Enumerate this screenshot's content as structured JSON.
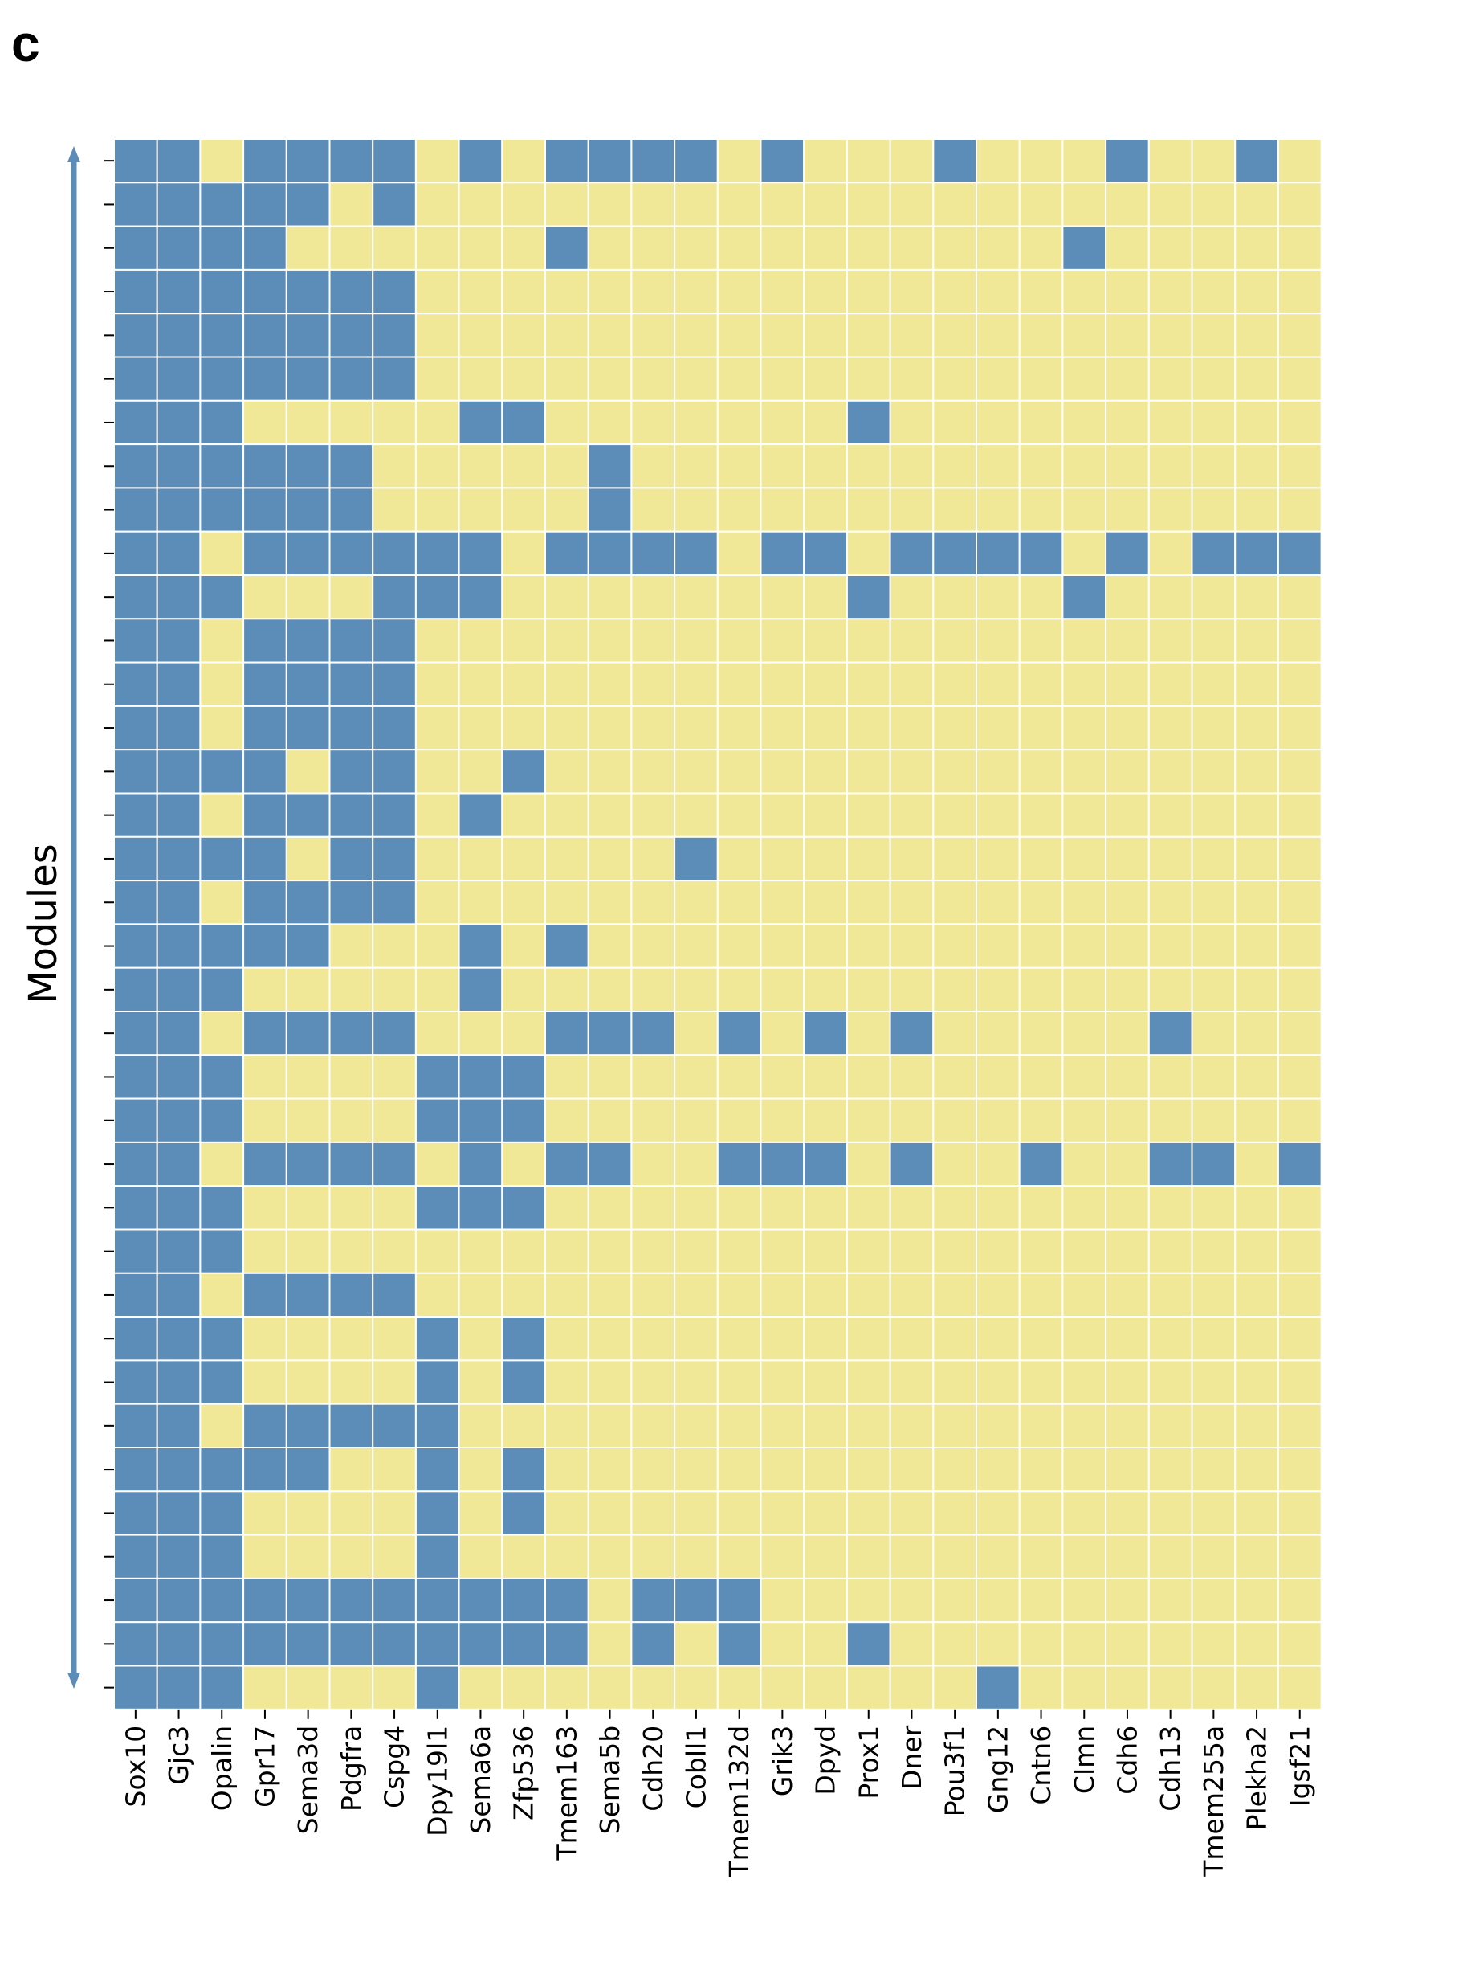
{
  "panel_label": "c",
  "chart_data": {
    "type": "heatmap",
    "ylabel": "Modules",
    "colors": {
      "present": "#5b8db8",
      "absent": "#f0e896",
      "grid": "#ffffff",
      "arrow": "#5b8db8"
    },
    "columns": [
      "Sox10",
      "Gjc3",
      "Opalin",
      "Gpr17",
      "Sema3d",
      "Pdgfra",
      "Cspg4",
      "Dpy19l1",
      "Sema6a",
      "Zfp536",
      "Tmem163",
      "Sema5b",
      "Cdh20",
      "Cobll1",
      "Tmem132d",
      "Grik3",
      "Dpyd",
      "Prox1",
      "Dner",
      "Pou3f1",
      "Gng12",
      "Cntn6",
      "Clmn",
      "Cdh6",
      "Cdh13",
      "Tmem255a",
      "Plekha2",
      "Igsf21"
    ],
    "matrix": [
      [
        1,
        1,
        0,
        1,
        1,
        1,
        1,
        0,
        1,
        0,
        1,
        1,
        1,
        1,
        0,
        1,
        0,
        0,
        0,
        1,
        0,
        0,
        0,
        1,
        0,
        0,
        1,
        0
      ],
      [
        1,
        1,
        1,
        1,
        1,
        0,
        1,
        0,
        0,
        0,
        0,
        0,
        0,
        0,
        0,
        0,
        0,
        0,
        0,
        0,
        0,
        0,
        0,
        0,
        0,
        0,
        0,
        0
      ],
      [
        1,
        1,
        1,
        1,
        0,
        0,
        0,
        0,
        0,
        0,
        1,
        0,
        0,
        0,
        0,
        0,
        0,
        0,
        0,
        0,
        0,
        0,
        1,
        0,
        0,
        0,
        0,
        0
      ],
      [
        1,
        1,
        1,
        1,
        1,
        1,
        1,
        0,
        0,
        0,
        0,
        0,
        0,
        0,
        0,
        0,
        0,
        0,
        0,
        0,
        0,
        0,
        0,
        0,
        0,
        0,
        0,
        0
      ],
      [
        1,
        1,
        1,
        1,
        1,
        1,
        1,
        0,
        0,
        0,
        0,
        0,
        0,
        0,
        0,
        0,
        0,
        0,
        0,
        0,
        0,
        0,
        0,
        0,
        0,
        0,
        0,
        0
      ],
      [
        1,
        1,
        1,
        1,
        1,
        1,
        1,
        0,
        0,
        0,
        0,
        0,
        0,
        0,
        0,
        0,
        0,
        0,
        0,
        0,
        0,
        0,
        0,
        0,
        0,
        0,
        0,
        0
      ],
      [
        1,
        1,
        1,
        0,
        0,
        0,
        0,
        0,
        1,
        1,
        0,
        0,
        0,
        0,
        0,
        0,
        0,
        1,
        0,
        0,
        0,
        0,
        0,
        0,
        0,
        0,
        0,
        0
      ],
      [
        1,
        1,
        1,
        1,
        1,
        1,
        0,
        0,
        0,
        0,
        0,
        1,
        0,
        0,
        0,
        0,
        0,
        0,
        0,
        0,
        0,
        0,
        0,
        0,
        0,
        0,
        0,
        0
      ],
      [
        1,
        1,
        1,
        1,
        1,
        1,
        0,
        0,
        0,
        0,
        0,
        1,
        0,
        0,
        0,
        0,
        0,
        0,
        0,
        0,
        0,
        0,
        0,
        0,
        0,
        0,
        0,
        0
      ],
      [
        1,
        1,
        0,
        1,
        1,
        1,
        1,
        1,
        1,
        0,
        1,
        1,
        1,
        1,
        0,
        1,
        1,
        0,
        1,
        1,
        1,
        1,
        0,
        1,
        0,
        1,
        1,
        1
      ],
      [
        1,
        1,
        1,
        0,
        0,
        0,
        1,
        1,
        1,
        0,
        0,
        0,
        0,
        0,
        0,
        0,
        0,
        1,
        0,
        0,
        0,
        0,
        1,
        0,
        0,
        0,
        0,
        0
      ],
      [
        1,
        1,
        0,
        1,
        1,
        1,
        1,
        0,
        0,
        0,
        0,
        0,
        0,
        0,
        0,
        0,
        0,
        0,
        0,
        0,
        0,
        0,
        0,
        0,
        0,
        0,
        0,
        0
      ],
      [
        1,
        1,
        0,
        1,
        1,
        1,
        1,
        0,
        0,
        0,
        0,
        0,
        0,
        0,
        0,
        0,
        0,
        0,
        0,
        0,
        0,
        0,
        0,
        0,
        0,
        0,
        0,
        0
      ],
      [
        1,
        1,
        0,
        1,
        1,
        1,
        1,
        0,
        0,
        0,
        0,
        0,
        0,
        0,
        0,
        0,
        0,
        0,
        0,
        0,
        0,
        0,
        0,
        0,
        0,
        0,
        0,
        0
      ],
      [
        1,
        1,
        1,
        1,
        0,
        1,
        1,
        0,
        0,
        1,
        0,
        0,
        0,
        0,
        0,
        0,
        0,
        0,
        0,
        0,
        0,
        0,
        0,
        0,
        0,
        0,
        0,
        0
      ],
      [
        1,
        1,
        0,
        1,
        1,
        1,
        1,
        0,
        1,
        0,
        0,
        0,
        0,
        0,
        0,
        0,
        0,
        0,
        0,
        0,
        0,
        0,
        0,
        0,
        0,
        0,
        0,
        0
      ],
      [
        1,
        1,
        1,
        1,
        0,
        1,
        1,
        0,
        0,
        0,
        0,
        0,
        0,
        1,
        0,
        0,
        0,
        0,
        0,
        0,
        0,
        0,
        0,
        0,
        0,
        0,
        0,
        0
      ],
      [
        1,
        1,
        0,
        1,
        1,
        1,
        1,
        0,
        0,
        0,
        0,
        0,
        0,
        0,
        0,
        0,
        0,
        0,
        0,
        0,
        0,
        0,
        0,
        0,
        0,
        0,
        0,
        0
      ],
      [
        1,
        1,
        1,
        1,
        1,
        0,
        0,
        0,
        1,
        0,
        1,
        0,
        0,
        0,
        0,
        0,
        0,
        0,
        0,
        0,
        0,
        0,
        0,
        0,
        0,
        0,
        0,
        0
      ],
      [
        1,
        1,
        1,
        0,
        0,
        0,
        0,
        0,
        1,
        0,
        0,
        0,
        0,
        0,
        0,
        0,
        0,
        0,
        0,
        0,
        0,
        0,
        0,
        0,
        0,
        0,
        0,
        0
      ],
      [
        1,
        1,
        0,
        1,
        1,
        1,
        1,
        0,
        0,
        0,
        1,
        1,
        1,
        0,
        1,
        0,
        1,
        0,
        1,
        0,
        0,
        0,
        0,
        0,
        1,
        0,
        0,
        0
      ],
      [
        1,
        1,
        1,
        0,
        0,
        0,
        0,
        1,
        1,
        1,
        0,
        0,
        0,
        0,
        0,
        0,
        0,
        0,
        0,
        0,
        0,
        0,
        0,
        0,
        0,
        0,
        0,
        0
      ],
      [
        1,
        1,
        1,
        0,
        0,
        0,
        0,
        1,
        1,
        1,
        0,
        0,
        0,
        0,
        0,
        0,
        0,
        0,
        0,
        0,
        0,
        0,
        0,
        0,
        0,
        0,
        0,
        0
      ],
      [
        1,
        1,
        0,
        1,
        1,
        1,
        1,
        0,
        1,
        0,
        1,
        1,
        0,
        0,
        1,
        1,
        1,
        0,
        1,
        0,
        0,
        1,
        0,
        0,
        1,
        1,
        0,
        1
      ],
      [
        1,
        1,
        1,
        0,
        0,
        0,
        0,
        1,
        1,
        1,
        0,
        0,
        0,
        0,
        0,
        0,
        0,
        0,
        0,
        0,
        0,
        0,
        0,
        0,
        0,
        0,
        0,
        0
      ],
      [
        1,
        1,
        1,
        0,
        0,
        0,
        0,
        0,
        0,
        0,
        0,
        0,
        0,
        0,
        0,
        0,
        0,
        0,
        0,
        0,
        0,
        0,
        0,
        0,
        0,
        0,
        0,
        0
      ],
      [
        1,
        1,
        0,
        1,
        1,
        1,
        1,
        0,
        0,
        0,
        0,
        0,
        0,
        0,
        0,
        0,
        0,
        0,
        0,
        0,
        0,
        0,
        0,
        0,
        0,
        0,
        0,
        0
      ],
      [
        1,
        1,
        1,
        0,
        0,
        0,
        0,
        1,
        0,
        1,
        0,
        0,
        0,
        0,
        0,
        0,
        0,
        0,
        0,
        0,
        0,
        0,
        0,
        0,
        0,
        0,
        0,
        0
      ],
      [
        1,
        1,
        1,
        0,
        0,
        0,
        0,
        1,
        0,
        1,
        0,
        0,
        0,
        0,
        0,
        0,
        0,
        0,
        0,
        0,
        0,
        0,
        0,
        0,
        0,
        0,
        0,
        0
      ],
      [
        1,
        1,
        0,
        1,
        1,
        1,
        1,
        1,
        0,
        0,
        0,
        0,
        0,
        0,
        0,
        0,
        0,
        0,
        0,
        0,
        0,
        0,
        0,
        0,
        0,
        0,
        0,
        0
      ],
      [
        1,
        1,
        1,
        1,
        1,
        0,
        0,
        1,
        0,
        1,
        0,
        0,
        0,
        0,
        0,
        0,
        0,
        0,
        0,
        0,
        0,
        0,
        0,
        0,
        0,
        0,
        0,
        0
      ],
      [
        1,
        1,
        1,
        0,
        0,
        0,
        0,
        1,
        0,
        1,
        0,
        0,
        0,
        0,
        0,
        0,
        0,
        0,
        0,
        0,
        0,
        0,
        0,
        0,
        0,
        0,
        0,
        0
      ],
      [
        1,
        1,
        1,
        0,
        0,
        0,
        0,
        1,
        0,
        0,
        0,
        0,
        0,
        0,
        0,
        0,
        0,
        0,
        0,
        0,
        0,
        0,
        0,
        0,
        0,
        0,
        0,
        0
      ],
      [
        1,
        1,
        1,
        1,
        1,
        1,
        1,
        1,
        1,
        1,
        1,
        0,
        1,
        1,
        1,
        0,
        0,
        0,
        0,
        0,
        0,
        0,
        0,
        0,
        0,
        0,
        0,
        0
      ],
      [
        1,
        1,
        1,
        1,
        1,
        1,
        1,
        1,
        1,
        1,
        1,
        0,
        1,
        0,
        1,
        0,
        0,
        1,
        0,
        0,
        0,
        0,
        0,
        0,
        0,
        0,
        0,
        0
      ],
      [
        1,
        1,
        1,
        0,
        0,
        0,
        0,
        1,
        0,
        0,
        0,
        0,
        0,
        0,
        0,
        0,
        0,
        0,
        0,
        0,
        1,
        0,
        0,
        0,
        0,
        0,
        0,
        0
      ]
    ]
  }
}
